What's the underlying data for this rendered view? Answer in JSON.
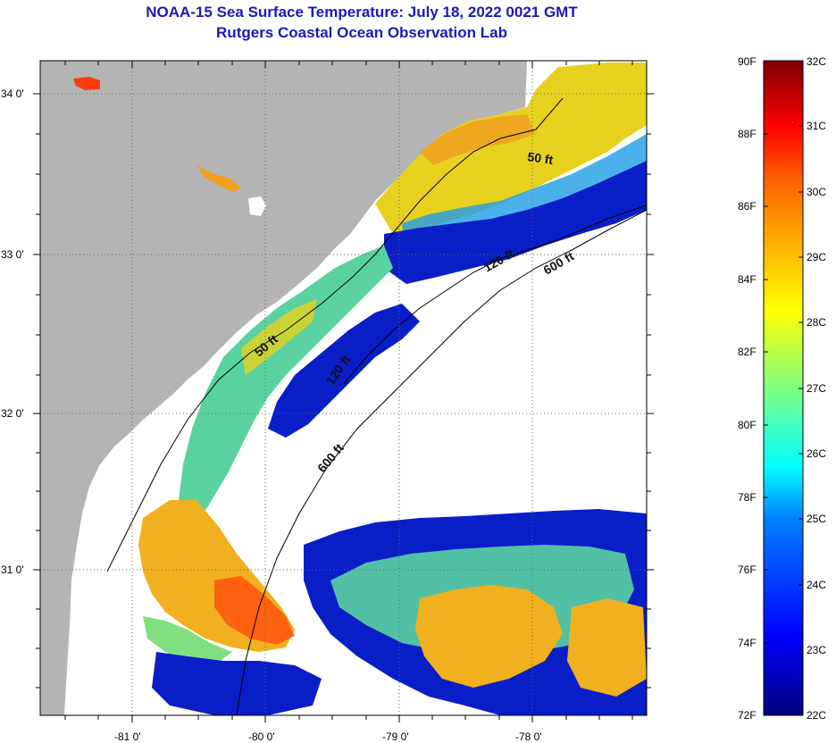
{
  "header": {
    "title_line1": "NOAA-15 Sea Surface Temperature:  July 18, 2022 0021 GMT",
    "title_line2": "Rutgers Coastal Ocean Observation Lab"
  },
  "map": {
    "lat_labels": [
      "34 0'",
      "33 0'",
      "32 0'",
      "31 0'"
    ],
    "lon_labels": [
      "-81 0'",
      "-80 0'",
      "-79 0'",
      "-78 0'"
    ],
    "contour_labels": [
      "50 ft",
      "50 ft",
      "120 ft",
      "120 ft",
      "600 ft",
      "600 ft"
    ],
    "colors": {
      "land": "#b4b4b4",
      "no_data": "#ffffff",
      "frame": "#000000"
    }
  },
  "colorbar": {
    "fahrenheit_labels": [
      "90F",
      "88F",
      "86F",
      "84F",
      "82F",
      "80F",
      "78F",
      "76F",
      "74F",
      "72F"
    ],
    "celsius_labels": [
      "32C",
      "31C",
      "30C",
      "29C",
      "28C",
      "27C",
      "26C",
      "25C",
      "24C",
      "23C",
      "22C"
    ],
    "range_f": [
      72,
      90
    ],
    "range_c": [
      22,
      32
    ]
  }
}
